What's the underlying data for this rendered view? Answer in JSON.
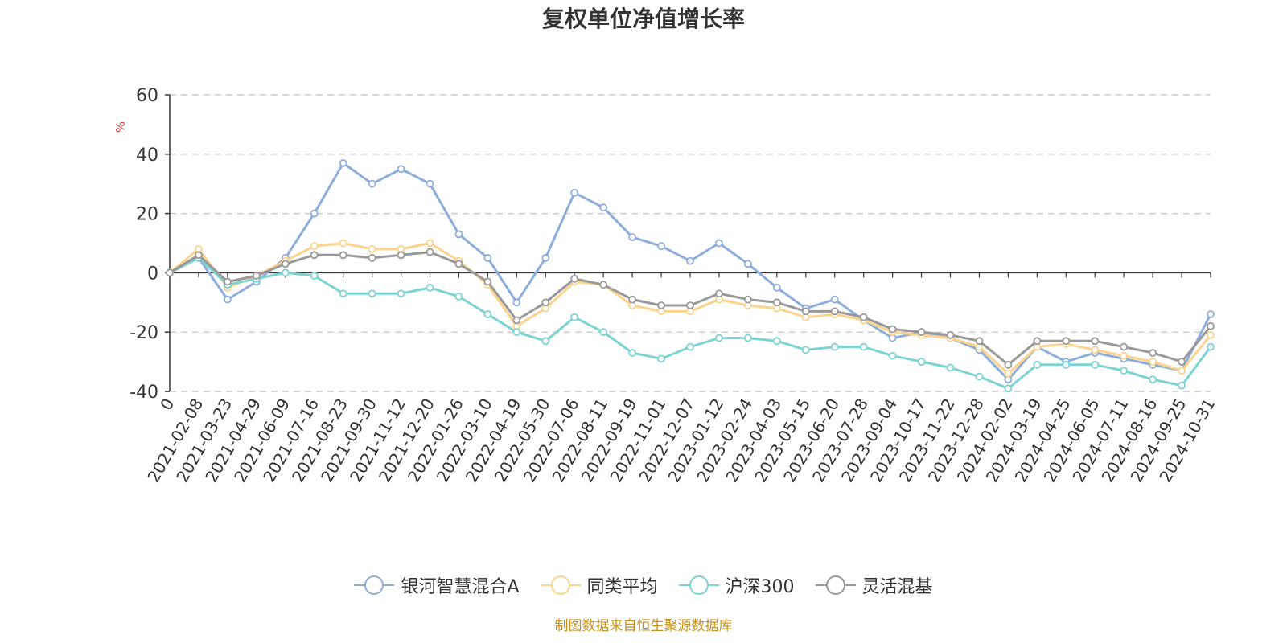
{
  "title": "复权单位净值增长率",
  "source": "制图数据来自恒生聚源数据库",
  "chart_data": {
    "type": "line",
    "title": "复权单位净值增长率",
    "ylabel": "%",
    "ylim": [
      -40,
      60
    ],
    "yticks": [
      60,
      40,
      20,
      0,
      -20,
      -40
    ],
    "grid": true,
    "legend_position": "bottom",
    "categories": [
      "0",
      "2021-02-08",
      "2021-03-23",
      "2021-04-29",
      "2021-06-09",
      "2021-07-16",
      "2021-08-23",
      "2021-09-30",
      "2021-11-12",
      "2021-12-20",
      "2022-01-26",
      "2022-03-10",
      "2022-04-19",
      "2022-05-30",
      "2022-07-06",
      "2022-08-11",
      "2022-09-19",
      "2022-11-01",
      "2022-12-07",
      "2023-01-12",
      "2023-02-24",
      "2023-04-03",
      "2023-05-15",
      "2023-06-20",
      "2023-07-28",
      "2023-09-04",
      "2023-10-17",
      "2023-11-22",
      "2023-12-28",
      "2024-02-02",
      "2024-03-19",
      "2024-04-25",
      "2024-06-05",
      "2024-07-11",
      "2024-08-16",
      "2024-09-25",
      "2024-10-31"
    ],
    "series": [
      {
        "name": "银河智慧混合A",
        "color": "#8eaddd",
        "values": [
          0,
          5,
          -9,
          -3,
          5,
          20,
          37,
          30,
          35,
          30,
          13,
          5,
          -10,
          5,
          27,
          22,
          12,
          9,
          4,
          10,
          3,
          -5,
          -12,
          -9,
          -16,
          -22,
          -20,
          -22,
          -26,
          -36,
          -25,
          -30,
          -27,
          -29,
          -31,
          -33,
          -14
        ]
      },
      {
        "name": "同类平均",
        "color": "#fbd38d",
        "values": [
          0,
          8,
          -5,
          -1,
          4,
          9,
          10,
          8,
          8,
          10,
          4,
          -4,
          -18,
          -12,
          -3,
          -4,
          -11,
          -13,
          -13,
          -9,
          -11,
          -12,
          -15,
          -14,
          -16,
          -20,
          -21,
          -22,
          -25,
          -34,
          -25,
          -24,
          -26,
          -28,
          -30,
          -33,
          -21
        ]
      },
      {
        "name": "沪深300",
        "color": "#7dd3d3",
        "values": [
          0,
          5,
          -4,
          -2,
          0,
          -1,
          -7,
          -7,
          -7,
          -5,
          -8,
          -14,
          -20,
          -23,
          -15,
          -20,
          -27,
          -29,
          -25,
          -22,
          -22,
          -23,
          -26,
          -25,
          -25,
          -28,
          -30,
          -32,
          -35,
          -39,
          -31,
          -31,
          -31,
          -33,
          -36,
          -38,
          -25
        ]
      },
      {
        "name": "灵活混基",
        "color": "#999999",
        "values": [
          0,
          6,
          -3,
          -1,
          3,
          6,
          6,
          5,
          6,
          7,
          3,
          -3,
          -16,
          -10,
          -2,
          -4,
          -9,
          -11,
          -11,
          -7,
          -9,
          -10,
          -13,
          -13,
          -15,
          -19,
          -20,
          -21,
          -23,
          -31,
          -23,
          -23,
          -23,
          -25,
          -27,
          -30,
          -18
        ]
      }
    ]
  }
}
